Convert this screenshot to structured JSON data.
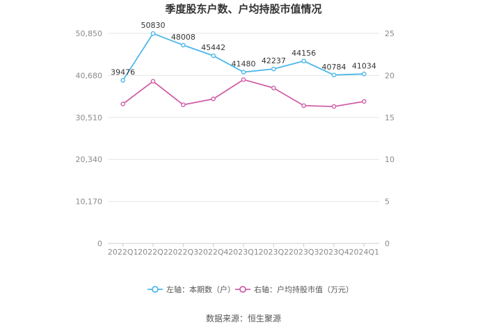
{
  "chart_data": {
    "type": "line",
    "title": "季度股东户数、户均持股市值情况",
    "categories": [
      "2022Q1",
      "2022Q2",
      "2022Q3",
      "2022Q4",
      "2023Q1",
      "2023Q2",
      "2023Q3",
      "2023Q4",
      "2024Q1"
    ],
    "y_left": {
      "ticks": [
        0,
        10170,
        20340,
        30510,
        40680,
        50850
      ],
      "tick_labels": [
        "0",
        "10,170",
        "20,340",
        "30,510",
        "40,680",
        "50,850"
      ],
      "range": [
        0,
        50850
      ]
    },
    "y_right": {
      "ticks": [
        0,
        5,
        10,
        15,
        20,
        25
      ],
      "tick_labels": [
        "0",
        "5",
        "10",
        "15",
        "20",
        "25"
      ],
      "range": [
        0,
        25
      ]
    },
    "series": [
      {
        "name": "左轴：本期数（户）",
        "axis": "left",
        "color": "#4db8ea",
        "values": [
          39476,
          50830,
          48008,
          45442,
          41480,
          42237,
          44156,
          40784,
          41034
        ],
        "labels": [
          "39476",
          "50830",
          "48008",
          "45442",
          "41480",
          "42237",
          "44156",
          "40784",
          "41034"
        ]
      },
      {
        "name": "右轴：户均持股市值（万元）",
        "axis": "right",
        "color": "#cf5fa8",
        "values": [
          16.6,
          19.3,
          16.5,
          17.2,
          19.5,
          18.5,
          16.4,
          16.3,
          16.9
        ]
      }
    ],
    "legend_position": "bottom",
    "grid": true
  },
  "footer": {
    "source": "数据来源：恒生聚源"
  }
}
